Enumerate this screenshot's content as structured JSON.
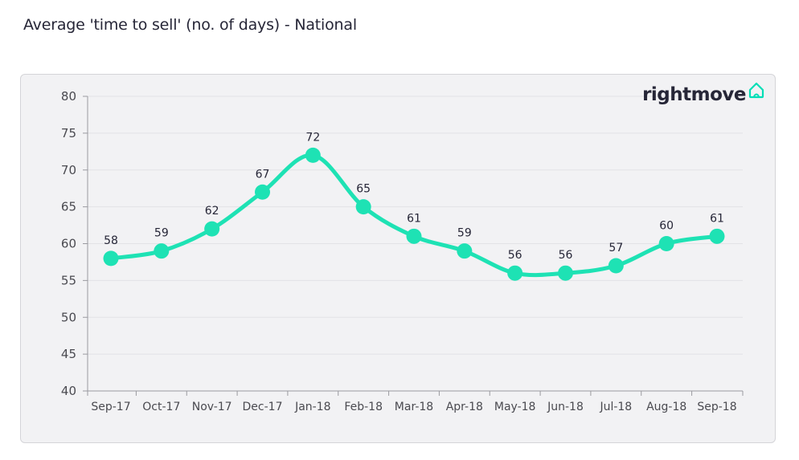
{
  "title": "Average 'time to sell' (no. of days) - National",
  "logo": {
    "text": "rightmove",
    "icon": "house-outline-icon",
    "color": "#00deb6"
  },
  "colors": {
    "line": "#1ee2b4",
    "panel_background": "#f2f2f4",
    "text": "#262637"
  },
  "chart_data": {
    "type": "line",
    "categories": [
      "Sep-17",
      "Oct-17",
      "Nov-17",
      "Dec-17",
      "Jan-18",
      "Feb-18",
      "Mar-18",
      "Apr-18",
      "May-18",
      "Jun-18",
      "Jul-18",
      "Aug-18",
      "Sep-18"
    ],
    "series": [
      {
        "values": [
          58,
          59,
          62,
          67,
          72,
          65,
          61,
          59,
          56,
          56,
          57,
          60,
          61
        ]
      }
    ],
    "data_labels": [
      "58",
      "59",
      "62",
      "67",
      "72",
      "65",
      "61",
      "59",
      "56",
      "56",
      "57",
      "60",
      "61"
    ],
    "ylim": [
      40,
      80
    ],
    "yticks": [
      40,
      45,
      50,
      55,
      60,
      65,
      70,
      75,
      80
    ],
    "ytick_labels": [
      "40",
      "45",
      "50",
      "55",
      "60",
      "65",
      "70",
      "75",
      "80"
    ],
    "grid": true,
    "smooth": true,
    "markers": true,
    "legend": "none"
  }
}
